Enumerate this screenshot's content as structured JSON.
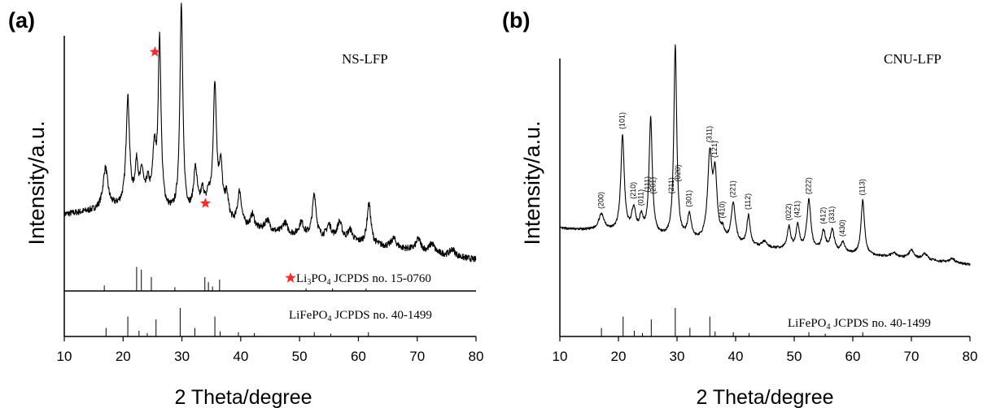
{
  "figure": {
    "panels": [
      {
        "label": "(a)",
        "sample_label": "NS-LFP",
        "ylabel": "Intensity/a.u.",
        "xlabel": "2 Theta/degree",
        "ref_li3po4": {
          "formula": "Li",
          "sub1": "3",
          "mid": "PO",
          "sub2": "4",
          "rest": " JCPDS no. 15-0760"
        },
        "ref_lifepo4": {
          "formula": "LiFePO",
          "sub": "4",
          "rest": " JCPDS no. 40-1499"
        },
        "marker_color": "#ff2a2a"
      },
      {
        "label": "(b)",
        "sample_label": "CNU-LFP",
        "ylabel": "Intensity/a.u.",
        "xlabel": "2 Theta/degree",
        "ref_lifepo4": {
          "formula": "LiFePO",
          "sub": "4",
          "rest": " JCPDS no. 40-1499"
        }
      }
    ]
  },
  "chart_data": [
    {
      "type": "line",
      "panel": "(a)",
      "title": "NS-LFP",
      "xlabel": "2 Theta/degree",
      "ylabel": "Intensity/a.u.",
      "xlim": [
        10,
        80
      ],
      "xticks": [
        10,
        20,
        30,
        40,
        50,
        60,
        70,
        80
      ],
      "grid": false,
      "baseline": {
        "points": [
          [
            10,
            23
          ],
          [
            20,
            26
          ],
          [
            30,
            22
          ],
          [
            40,
            17
          ],
          [
            50,
            13
          ],
          [
            60,
            10
          ],
          [
            70,
            7
          ],
          [
            80,
            3
          ]
        ]
      },
      "peaks": [
        {
          "x": 17.0,
          "h": 18,
          "w": 0.5
        },
        {
          "x": 20.8,
          "h": 48,
          "w": 0.35
        },
        {
          "x": 22.3,
          "h": 18,
          "w": 0.35
        },
        {
          "x": 23.2,
          "h": 14,
          "w": 0.35
        },
        {
          "x": 24.2,
          "h": 10,
          "w": 0.4
        },
        {
          "x": 25.3,
          "h": 24,
          "w": 0.35
        },
        {
          "x": 26.2,
          "h": 74,
          "w": 0.3
        },
        {
          "x": 29.9,
          "h": 92,
          "w": 0.3
        },
        {
          "x": 32.3,
          "h": 20,
          "w": 0.4
        },
        {
          "x": 33.5,
          "h": 10,
          "w": 0.4
        },
        {
          "x": 34.5,
          "h": 8,
          "w": 0.4
        },
        {
          "x": 35.6,
          "h": 58,
          "w": 0.35
        },
        {
          "x": 36.6,
          "h": 22,
          "w": 0.35
        },
        {
          "x": 37.6,
          "h": 11,
          "w": 0.4
        },
        {
          "x": 39.8,
          "h": 15,
          "w": 0.4
        },
        {
          "x": 42.0,
          "h": 6,
          "w": 0.4
        },
        {
          "x": 44.5,
          "h": 5,
          "w": 0.5
        },
        {
          "x": 47.5,
          "h": 5,
          "w": 0.5
        },
        {
          "x": 50.3,
          "h": 6,
          "w": 0.5
        },
        {
          "x": 52.5,
          "h": 19,
          "w": 0.4
        },
        {
          "x": 55.0,
          "h": 6,
          "w": 0.5
        },
        {
          "x": 56.8,
          "h": 8,
          "w": 0.5
        },
        {
          "x": 58.6,
          "h": 5,
          "w": 0.5
        },
        {
          "x": 61.8,
          "h": 18,
          "w": 0.4
        },
        {
          "x": 66.0,
          "h": 4,
          "w": 0.5
        },
        {
          "x": 70.2,
          "h": 5,
          "w": 0.5
        },
        {
          "x": 72.5,
          "h": 4,
          "w": 0.5
        },
        {
          "x": 76.0,
          "h": 3,
          "w": 0.5
        }
      ],
      "noise": 1.4,
      "star_markers": [
        {
          "x": 25.4,
          "y": 95
        },
        {
          "x": 34.0,
          "y": 28
        }
      ],
      "reference_sticks": [
        {
          "name": "Li3PO4 JCPDS no. 15-0760",
          "x": [
            16.8,
            22.3,
            23.1,
            24.8,
            28.8,
            33.9,
            34.5,
            35.2,
            36.4,
            51.1,
            55.6,
            61.3
          ],
          "y": [
            22,
            95,
            85,
            55,
            15,
            55,
            35,
            18,
            45,
            10,
            10,
            10
          ]
        },
        {
          "name": "LiFePO4 JCPDS no. 40-1499",
          "x": [
            17.1,
            20.8,
            22.7,
            24.1,
            25.6,
            29.7,
            32.2,
            35.6,
            36.5,
            39.6,
            42.3,
            52.5,
            55.3,
            61.7
          ],
          "y": [
            30,
            70,
            20,
            12,
            60,
            100,
            30,
            70,
            18,
            15,
            12,
            15,
            10,
            15
          ]
        }
      ]
    },
    {
      "type": "line",
      "panel": "(b)",
      "title": "CNU-LFP",
      "xlabel": "2 Theta/degree",
      "ylabel": "Intensity/a.u.",
      "xlim": [
        10,
        80
      ],
      "xticks": [
        10,
        20,
        30,
        40,
        50,
        60,
        70,
        80
      ],
      "grid": false,
      "baseline": {
        "points": [
          [
            10,
            21
          ],
          [
            20,
            19
          ],
          [
            30,
            15
          ],
          [
            40,
            12
          ],
          [
            50,
            10
          ],
          [
            60,
            8
          ],
          [
            70,
            6
          ],
          [
            80,
            3
          ]
        ]
      },
      "peaks": [
        {
          "x": 17.1,
          "h": 8,
          "w": 0.6
        },
        {
          "x": 20.7,
          "h": 48,
          "w": 0.35
        },
        {
          "x": 22.6,
          "h": 12,
          "w": 0.4
        },
        {
          "x": 23.9,
          "h": 8,
          "w": 0.35
        },
        {
          "x": 25.5,
          "h": 58,
          "w": 0.33
        },
        {
          "x": 29.7,
          "h": 96,
          "w": 0.3
        },
        {
          "x": 32.1,
          "h": 12,
          "w": 0.4
        },
        {
          "x": 35.6,
          "h": 42,
          "w": 0.45
        },
        {
          "x": 36.5,
          "h": 31,
          "w": 0.4
        },
        {
          "x": 37.8,
          "h": 5,
          "w": 0.4
        },
        {
          "x": 39.6,
          "h": 20,
          "w": 0.45
        },
        {
          "x": 42.2,
          "h": 15,
          "w": 0.35
        },
        {
          "x": 44.9,
          "h": 3,
          "w": 0.5
        },
        {
          "x": 49.1,
          "h": 11,
          "w": 0.35
        },
        {
          "x": 50.6,
          "h": 12,
          "w": 0.35
        },
        {
          "x": 52.5,
          "h": 25,
          "w": 0.4
        },
        {
          "x": 55.0,
          "h": 10,
          "w": 0.4
        },
        {
          "x": 56.5,
          "h": 11,
          "w": 0.4
        },
        {
          "x": 58.3,
          "h": 5,
          "w": 0.4
        },
        {
          "x": 61.7,
          "h": 27,
          "w": 0.35
        },
        {
          "x": 67.0,
          "h": 2,
          "w": 0.6
        },
        {
          "x": 70.0,
          "h": 4,
          "w": 0.5
        },
        {
          "x": 72.3,
          "h": 3,
          "w": 0.5
        },
        {
          "x": 77.0,
          "h": 2,
          "w": 0.5
        }
      ],
      "noise": 0.6,
      "peak_labels": [
        {
          "x": 17.1,
          "text": "(200)"
        },
        {
          "x": 20.7,
          "text": "(101)"
        },
        {
          "x": 22.6,
          "text": "(210)"
        },
        {
          "x": 23.9,
          "text": "(011)"
        },
        {
          "x": 25.0,
          "text": "(111)"
        },
        {
          "x": 26.0,
          "text": "(201)"
        },
        {
          "x": 29.1,
          "text": "(211)"
        },
        {
          "x": 30.2,
          "text": "(020)"
        },
        {
          "x": 32.1,
          "text": "(301)"
        },
        {
          "x": 35.6,
          "text": "(311)"
        },
        {
          "x": 36.5,
          "text": "(121)"
        },
        {
          "x": 37.8,
          "text": "(410)"
        },
        {
          "x": 39.6,
          "text": "(221)"
        },
        {
          "x": 42.2,
          "text": "(112)"
        },
        {
          "x": 49.1,
          "text": "(022)"
        },
        {
          "x": 50.6,
          "text": "(421)"
        },
        {
          "x": 52.5,
          "text": "(222)"
        },
        {
          "x": 55.0,
          "text": "(412)"
        },
        {
          "x": 56.5,
          "text": "(331)"
        },
        {
          "x": 58.3,
          "text": "(430)"
        },
        {
          "x": 61.7,
          "text": "(113)"
        }
      ],
      "reference_sticks": [
        {
          "name": "LiFePO4 JCPDS no. 40-1499",
          "x": [
            17.1,
            20.8,
            22.7,
            24.1,
            25.6,
            29.7,
            32.2,
            35.6,
            36.5,
            39.6,
            42.3,
            52.5,
            55.3,
            61.7
          ],
          "y": [
            30,
            70,
            20,
            12,
            60,
            100,
            30,
            70,
            18,
            15,
            12,
            15,
            10,
            15
          ]
        }
      ]
    }
  ]
}
